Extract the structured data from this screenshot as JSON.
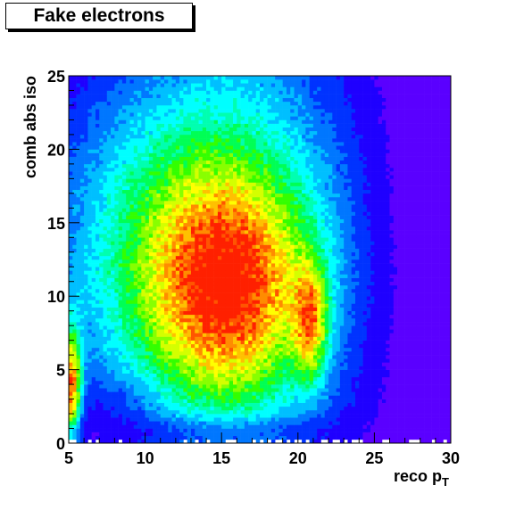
{
  "chart_data": {
    "type": "heatmap",
    "title": "Fake electrons",
    "xlabel": "reco p",
    "xlabel_subscript": "T",
    "ylabel": "comb abs iso",
    "xlim": [
      5,
      30
    ],
    "ylim": [
      0,
      25
    ],
    "x_ticks": [
      5,
      10,
      15,
      20,
      25,
      30
    ],
    "y_ticks": [
      0,
      5,
      10,
      15,
      20,
      25
    ],
    "bins": {
      "x": 100,
      "y": 100
    },
    "grid": false,
    "colormap": [
      "#5a00ff",
      "#1f00ff",
      "#0033ff",
      "#0077ff",
      "#00bfff",
      "#00ffff",
      "#00ffb0",
      "#00ff55",
      "#33ff00",
      "#88ff00",
      "#d4ff00",
      "#ffff00",
      "#ffc000",
      "#ff8c00",
      "#ff5500",
      "#ff2000"
    ],
    "density_components": [
      {
        "label": "main-blob",
        "x": 15.5,
        "y": 10.5,
        "sx": 3.3,
        "sy": 4.8,
        "amp": 0.55
      },
      {
        "label": "wide-background",
        "x": 13.0,
        "y": 13.0,
        "sx": 6.5,
        "sy": 8.5,
        "amp": 0.48
      },
      {
        "label": "peak-20",
        "x": 20.8,
        "y": 8.3,
        "sx": 0.75,
        "sy": 2.6,
        "amp": 0.52
      },
      {
        "label": "low-pt-edge",
        "x": 5.15,
        "y": 3.0,
        "sx": 0.45,
        "sy": 3.0,
        "amp": 0.85
      }
    ]
  }
}
